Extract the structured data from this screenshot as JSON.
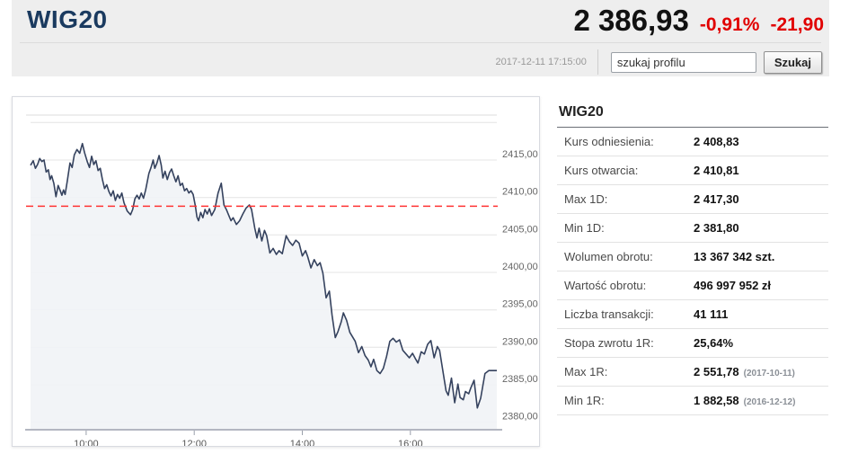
{
  "header": {
    "title": "WIG20",
    "price": "2 386,93",
    "change_percent": "-0,91%",
    "change_absolute": "-21,90",
    "timestamp": "2017-12-11 17:15:00",
    "search": {
      "value": "szukaj profilu",
      "button_label": "Szukaj"
    }
  },
  "colors": {
    "header_bg": "#eeeeee",
    "title_navy": "#1a3a5f",
    "negative_red": "#e10000",
    "line_color": "#35425e",
    "area_fill": "#f1f3f6",
    "reference_red": "#ff3333",
    "gridline": "#e4e4e4",
    "axis": "#b3b6c1"
  },
  "side_panel": {
    "title": "WIG20",
    "rows": [
      {
        "label": "Kurs odniesienia:",
        "value": "2 408,83",
        "note": ""
      },
      {
        "label": "Kurs otwarcia:",
        "value": "2 410,81",
        "note": ""
      },
      {
        "label": "Max 1D:",
        "value": "2 417,30",
        "note": ""
      },
      {
        "label": "Min 1D:",
        "value": "2 381,80",
        "note": ""
      },
      {
        "label": "Wolumen obrotu:",
        "value": "13 367 342 szt.",
        "note": ""
      },
      {
        "label": "Wartość obrotu:",
        "value": "496 997 952 zł",
        "note": ""
      },
      {
        "label": "Liczba transakcji:",
        "value": "41 111",
        "note": ""
      },
      {
        "label": "Stopa zwrotu 1R:",
        "value": "25,64%",
        "note": ""
      },
      {
        "label": "Max 1R:",
        "value": "2 551,78",
        "note": "(2017-10-11)"
      },
      {
        "label": "Min 1R:",
        "value": "1 882,58",
        "note": "(2016-12-12)"
      }
    ]
  },
  "chart_data": {
    "type": "area",
    "title": "WIG20 intraday 2017-12-11",
    "x_domain_hours": [
      8.97,
      17.6
    ],
    "y_domain": [
      2379,
      2421
    ],
    "grid": true,
    "reference_value": 2408.83,
    "y_gridlines": [
      2380,
      2385,
      2390,
      2395,
      2400,
      2405,
      2410,
      2415,
      2420
    ],
    "y_ticks": [
      {
        "value": 2380,
        "label": "2380,00"
      },
      {
        "value": 2385,
        "label": "2385,00"
      },
      {
        "value": 2390,
        "label": "2390,00"
      },
      {
        "value": 2395,
        "label": "2395,00"
      },
      {
        "value": 2400,
        "label": "2400,00"
      },
      {
        "value": 2405,
        "label": "2405,00"
      },
      {
        "value": 2410,
        "label": "2410,00"
      },
      {
        "value": 2415,
        "label": "2415,00"
      }
    ],
    "x_ticks": [
      {
        "t": 10,
        "label": "10:00"
      },
      {
        "t": 12,
        "label": "12:00"
      },
      {
        "t": 14,
        "label": "14:00"
      },
      {
        "t": 16,
        "label": "16:00"
      }
    ],
    "series": [
      {
        "name": "WIG20",
        "points": [
          [
            8.97,
            2414.3
          ],
          [
            9.02,
            2414.9
          ],
          [
            9.06,
            2413.9
          ],
          [
            9.1,
            2414.4
          ],
          [
            9.14,
            2415.2
          ],
          [
            9.18,
            2414.8
          ],
          [
            9.22,
            2415.0
          ],
          [
            9.26,
            2413.4
          ],
          [
            9.3,
            2413.7
          ],
          [
            9.33,
            2412.4
          ],
          [
            9.36,
            2412.9
          ],
          [
            9.4,
            2411.9
          ],
          [
            9.44,
            2410.1
          ],
          [
            9.48,
            2411.6
          ],
          [
            9.52,
            2410.9
          ],
          [
            9.55,
            2410.3
          ],
          [
            9.58,
            2411.0
          ],
          [
            9.61,
            2410.4
          ],
          [
            9.65,
            2412.2
          ],
          [
            9.7,
            2414.6
          ],
          [
            9.74,
            2414.0
          ],
          [
            9.78,
            2415.7
          ],
          [
            9.83,
            2416.4
          ],
          [
            9.88,
            2415.9
          ],
          [
            9.93,
            2417.2
          ],
          [
            9.97,
            2416.0
          ],
          [
            10.02,
            2414.8
          ],
          [
            10.06,
            2414.0
          ],
          [
            10.1,
            2415.5
          ],
          [
            10.14,
            2414.4
          ],
          [
            10.18,
            2414.9
          ],
          [
            10.22,
            2413.6
          ],
          [
            10.26,
            2413.9
          ],
          [
            10.3,
            2412.4
          ],
          [
            10.34,
            2411.2
          ],
          [
            10.38,
            2411.7
          ],
          [
            10.42,
            2410.8
          ],
          [
            10.46,
            2410.2
          ],
          [
            10.5,
            2410.9
          ],
          [
            10.54,
            2409.6
          ],
          [
            10.58,
            2410.4
          ],
          [
            10.62,
            2409.9
          ],
          [
            10.66,
            2410.6
          ],
          [
            10.7,
            2409.3
          ],
          [
            10.76,
            2408.2
          ],
          [
            10.82,
            2407.7
          ],
          [
            10.86,
            2408.4
          ],
          [
            10.9,
            2409.8
          ],
          [
            10.94,
            2410.3
          ],
          [
            10.98,
            2409.8
          ],
          [
            11.02,
            2410.6
          ],
          [
            11.06,
            2409.9
          ],
          [
            11.1,
            2411.0
          ],
          [
            11.16,
            2413.2
          ],
          [
            11.2,
            2414.0
          ],
          [
            11.24,
            2415.0
          ],
          [
            11.27,
            2413.9
          ],
          [
            11.31,
            2414.6
          ],
          [
            11.35,
            2415.6
          ],
          [
            11.39,
            2414.3
          ],
          [
            11.42,
            2412.6
          ],
          [
            11.46,
            2413.5
          ],
          [
            11.5,
            2412.4
          ],
          [
            11.54,
            2413.3
          ],
          [
            11.58,
            2413.8
          ],
          [
            11.62,
            2412.9
          ],
          [
            11.66,
            2412.1
          ],
          [
            11.7,
            2412.9
          ],
          [
            11.74,
            2411.6
          ],
          [
            11.78,
            2411.9
          ],
          [
            11.82,
            2410.9
          ],
          [
            11.86,
            2411.2
          ],
          [
            11.9,
            2410.6
          ],
          [
            11.94,
            2410.9
          ],
          [
            11.98,
            2410.4
          ],
          [
            12.02,
            2408.9
          ],
          [
            12.05,
            2407.4
          ],
          [
            12.08,
            2406.9
          ],
          [
            12.12,
            2408.0
          ],
          [
            12.16,
            2407.3
          ],
          [
            12.2,
            2408.4
          ],
          [
            12.24,
            2407.8
          ],
          [
            12.28,
            2408.5
          ],
          [
            12.32,
            2407.6
          ],
          [
            12.38,
            2408.4
          ],
          [
            12.44,
            2410.6
          ],
          [
            12.5,
            2411.9
          ],
          [
            12.55,
            2409.0
          ],
          [
            12.6,
            2408.3
          ],
          [
            12.64,
            2407.6
          ],
          [
            12.68,
            2406.9
          ],
          [
            12.72,
            2407.3
          ],
          [
            12.78,
            2406.4
          ],
          [
            12.84,
            2406.9
          ],
          [
            12.9,
            2407.8
          ],
          [
            12.96,
            2408.6
          ],
          [
            13.02,
            2409.0
          ],
          [
            13.06,
            2408.4
          ],
          [
            13.12,
            2405.9
          ],
          [
            13.16,
            2404.6
          ],
          [
            13.2,
            2405.9
          ],
          [
            13.25,
            2404.2
          ],
          [
            13.3,
            2405.6
          ],
          [
            13.34,
            2404.9
          ],
          [
            13.4,
            2402.6
          ],
          [
            13.46,
            2403.2
          ],
          [
            13.52,
            2402.4
          ],
          [
            13.57,
            2402.9
          ],
          [
            13.63,
            2402.5
          ],
          [
            13.7,
            2404.9
          ],
          [
            13.76,
            2404.1
          ],
          [
            13.82,
            2403.6
          ],
          [
            13.88,
            2404.3
          ],
          [
            13.94,
            2403.9
          ],
          [
            14.0,
            2402.2
          ],
          [
            14.06,
            2402.9
          ],
          [
            14.1,
            2402.1
          ],
          [
            14.16,
            2400.6
          ],
          [
            14.22,
            2401.7
          ],
          [
            14.28,
            2400.9
          ],
          [
            14.33,
            2401.3
          ],
          [
            14.38,
            2399.9
          ],
          [
            14.44,
            2396.6
          ],
          [
            14.5,
            2397.5
          ],
          [
            14.55,
            2394.3
          ],
          [
            14.61,
            2391.3
          ],
          [
            14.66,
            2392.1
          ],
          [
            14.72,
            2393.4
          ],
          [
            14.76,
            2394.6
          ],
          [
            14.82,
            2393.6
          ],
          [
            14.88,
            2392.0
          ],
          [
            14.93,
            2391.4
          ],
          [
            14.98,
            2390.8
          ],
          [
            15.04,
            2389.3
          ],
          [
            15.1,
            2390.1
          ],
          [
            15.16,
            2388.9
          ],
          [
            15.22,
            2388.3
          ],
          [
            15.27,
            2387.4
          ],
          [
            15.32,
            2388.4
          ],
          [
            15.38,
            2386.9
          ],
          [
            15.44,
            2386.5
          ],
          [
            15.5,
            2387.2
          ],
          [
            15.56,
            2388.8
          ],
          [
            15.62,
            2390.8
          ],
          [
            15.68,
            2391.2
          ],
          [
            15.74,
            2390.7
          ],
          [
            15.8,
            2391.0
          ],
          [
            15.86,
            2389.6
          ],
          [
            15.92,
            2389.1
          ],
          [
            15.98,
            2388.6
          ],
          [
            16.04,
            2389.2
          ],
          [
            16.1,
            2388.4
          ],
          [
            16.14,
            2387.9
          ],
          [
            16.2,
            2389.4
          ],
          [
            16.26,
            2389.1
          ],
          [
            16.32,
            2390.4
          ],
          [
            16.38,
            2390.9
          ],
          [
            16.44,
            2388.6
          ],
          [
            16.5,
            2390.1
          ],
          [
            16.54,
            2389.6
          ],
          [
            16.6,
            2386.9
          ],
          [
            16.66,
            2384.2
          ],
          [
            16.7,
            2383.6
          ],
          [
            16.76,
            2385.9
          ],
          [
            16.82,
            2382.6
          ],
          [
            16.88,
            2385.1
          ],
          [
            16.92,
            2383.3
          ],
          [
            16.98,
            2383.0
          ],
          [
            17.02,
            2384.1
          ],
          [
            17.08,
            2383.8
          ],
          [
            17.12,
            2384.6
          ],
          [
            17.18,
            2385.6
          ],
          [
            17.24,
            2381.9
          ],
          [
            17.3,
            2383.2
          ],
          [
            17.38,
            2386.5
          ],
          [
            17.45,
            2386.9
          ],
          [
            17.6,
            2386.9
          ]
        ]
      }
    ]
  }
}
